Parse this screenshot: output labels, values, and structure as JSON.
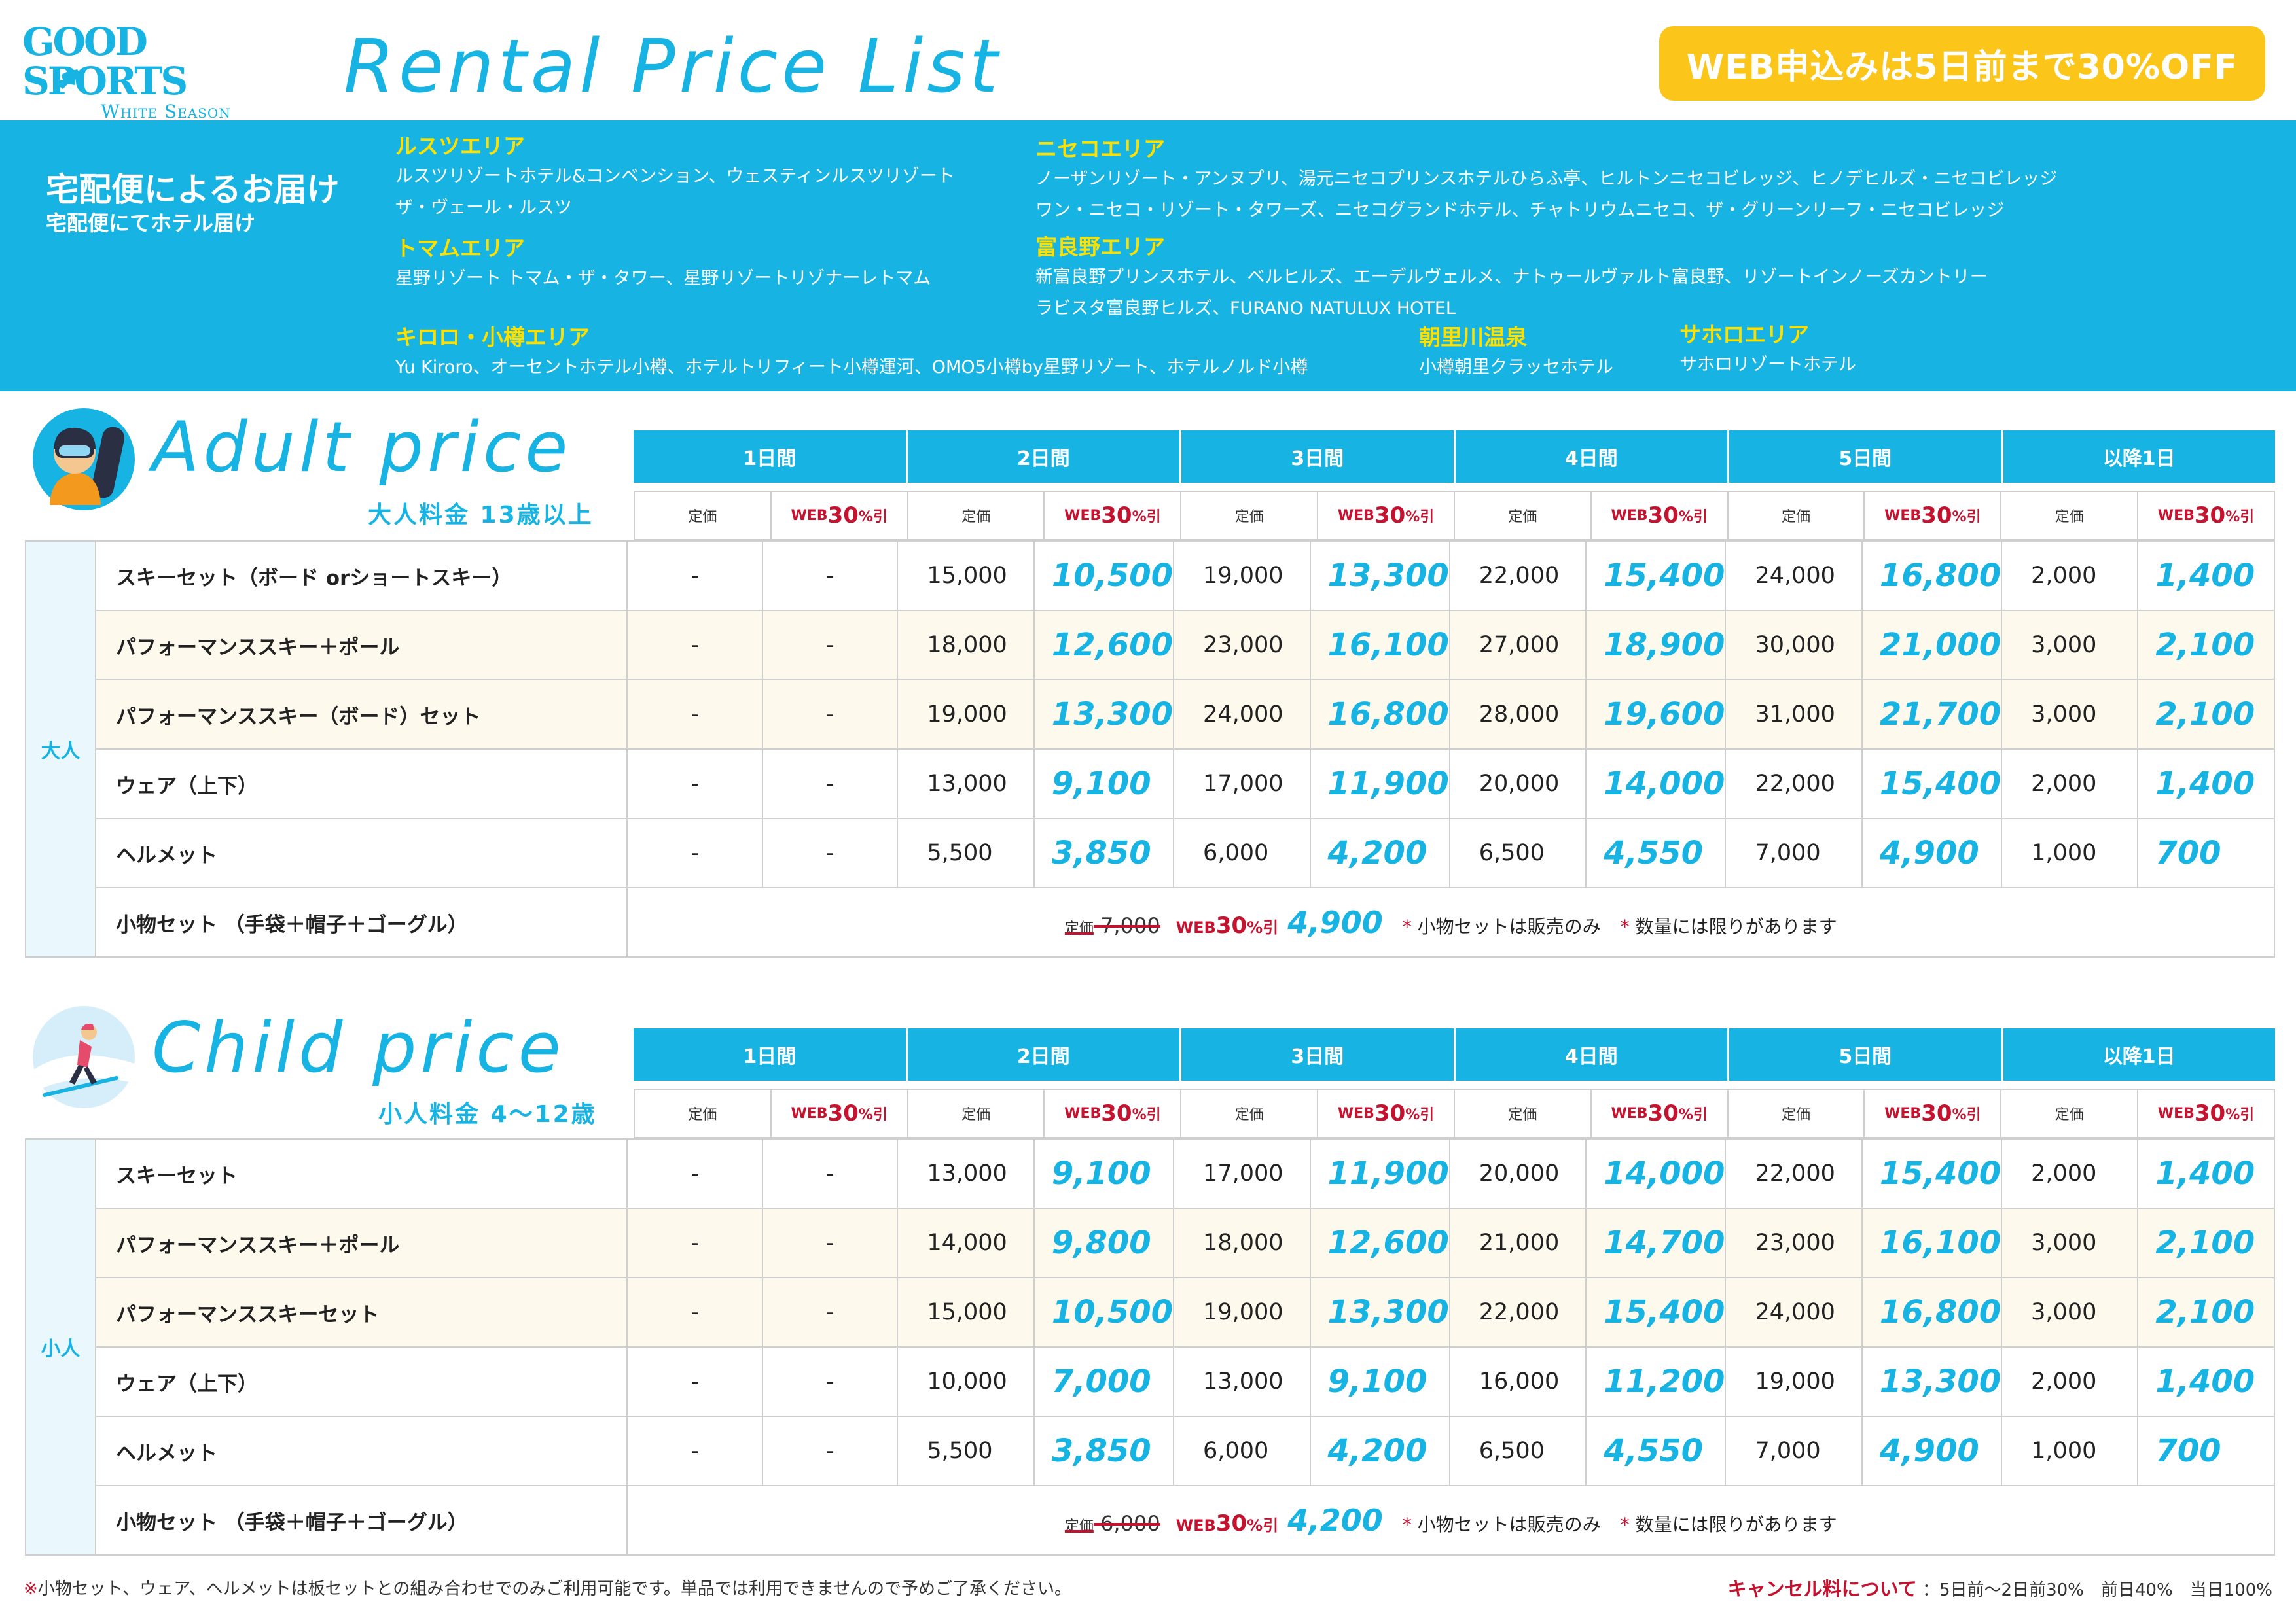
{
  "header": {
    "brand": "GOOD SPORTS",
    "season": "White Season",
    "title": "Rental Price List",
    "promo": "WEB申込みは5日前まで30%OFF",
    "brand_color": "#17b3e3",
    "promo_color": "#fbc51a"
  },
  "delivery": {
    "title": "宅配便によるお届け",
    "subtitle": "宅配便にてホテル届け",
    "areas": [
      {
        "name": "ルスツエリア",
        "lines": [
          "ルスツリゾートホテル&コンベンション、ウェスティンルスツリゾート",
          "ザ・ヴェール・ルスツ"
        ]
      },
      {
        "name": "トマムエリア",
        "lines": [
          "星野リゾート トマム・ザ・タワー、星野リゾートリゾナーレトマム"
        ]
      },
      {
        "name": "キロロ・小樽エリア",
        "lines": [
          "Yu Kiroro、オーセントホテル小樽、ホテルトリフィート小樽運河、OMO5小樽by星野リゾート、ホテルノルド小樽"
        ]
      },
      {
        "name": "ニセコエリア",
        "lines": [
          "ノーザンリゾート・アンヌプリ、湯元ニセコプリンスホテルひらふ亭、ヒルトンニセコビレッジ、ヒノデヒルズ・ニセコビレッジ",
          "ワン・ニセコ・リゾート・タワーズ、ニセコグランドホテル、チャトリウムニセコ、ザ・グリーンリーフ・ニセコビレッジ"
        ]
      },
      {
        "name": "富良野エリア",
        "lines": [
          "新富良野プリンスホテル、ベルヒルズ、エーデルヴェルメ、ナトゥールヴァルト富良野、リゾートインノーズカントリー",
          "ラビスタ富良野ヒルズ、FURANO NATULUX HOTEL"
        ]
      },
      {
        "name": "朝里川温泉",
        "lines": [
          "小樽朝里クラッセホテル"
        ]
      },
      {
        "name": "サホロエリア",
        "lines": [
          "サホロリゾートホテル"
        ]
      }
    ]
  },
  "columns": {
    "days": [
      "1日間",
      "2日間",
      "3日間",
      "4日間",
      "5日間",
      "以降1日"
    ],
    "std_label": "定価",
    "web_prefix": "WEB",
    "web_num": "30",
    "web_suffix": "%引"
  },
  "adult": {
    "title": "Adult price",
    "subtitle": "大人料金 13歳以上",
    "category": "大人",
    "rows": [
      {
        "item": "スキーセット（ボード orショートスキー）",
        "p1": "-",
        "w1": "-",
        "p2": "15,000",
        "w2": "10,500",
        "p3": "19,000",
        "w3": "13,300",
        "p4": "22,000",
        "w4": "15,400",
        "p5": "24,000",
        "w5": "16,800",
        "p6": "2,000",
        "w6": "1,400"
      },
      {
        "item": "パフォーマンススキー＋ポール",
        "p1": "-",
        "w1": "-",
        "p2": "18,000",
        "w2": "12,600",
        "p3": "23,000",
        "w3": "16,100",
        "p4": "27,000",
        "w4": "18,900",
        "p5": "30,000",
        "w5": "21,000",
        "p6": "3,000",
        "w6": "2,100"
      },
      {
        "item": "パフォーマンススキー（ボード）セット",
        "p1": "-",
        "w1": "-",
        "p2": "19,000",
        "w2": "13,300",
        "p3": "24,000",
        "w3": "16,800",
        "p4": "28,000",
        "w4": "19,600",
        "p5": "31,000",
        "w5": "21,700",
        "p6": "3,000",
        "w6": "2,100"
      },
      {
        "item": "ウェア（上下）",
        "p1": "-",
        "w1": "-",
        "p2": "13,000",
        "w2": "9,100",
        "p3": "17,000",
        "w3": "11,900",
        "p4": "20,000",
        "w4": "14,000",
        "p5": "22,000",
        "w5": "15,400",
        "p6": "2,000",
        "w6": "1,400"
      },
      {
        "item": "ヘルメット",
        "p1": "-",
        "w1": "-",
        "p2": "5,500",
        "w2": "3,850",
        "p3": "6,000",
        "w3": "4,200",
        "p4": "6,500",
        "w4": "4,550",
        "p5": "7,000",
        "w5": "4,900",
        "p6": "1,000",
        "w6": "700"
      }
    ],
    "accessory": {
      "item": "小物セット （手袋＋帽子＋ゴーグル）",
      "std_label": "定価",
      "std_price": "7,000",
      "web_price": "4,900",
      "note1": "小物セットは販売のみ",
      "note2": "数量には限りがあります"
    }
  },
  "child": {
    "title": "Child price",
    "subtitle": "小人料金 4〜12歳",
    "category": "小人",
    "rows": [
      {
        "item": "スキーセット",
        "p1": "-",
        "w1": "-",
        "p2": "13,000",
        "w2": "9,100",
        "p3": "17,000",
        "w3": "11,900",
        "p4": "20,000",
        "w4": "14,000",
        "p5": "22,000",
        "w5": "15,400",
        "p6": "2,000",
        "w6": "1,400"
      },
      {
        "item": "パフォーマンススキー＋ポール",
        "p1": "-",
        "w1": "-",
        "p2": "14,000",
        "w2": "9,800",
        "p3": "18,000",
        "w3": "12,600",
        "p4": "21,000",
        "w4": "14,700",
        "p5": "23,000",
        "w5": "16,100",
        "p6": "3,000",
        "w6": "2,100"
      },
      {
        "item": "パフォーマンススキーセット",
        "p1": "-",
        "w1": "-",
        "p2": "15,000",
        "w2": "10,500",
        "p3": "19,000",
        "w3": "13,300",
        "p4": "22,000",
        "w4": "15,400",
        "p5": "24,000",
        "w5": "16,800",
        "p6": "3,000",
        "w6": "2,100"
      },
      {
        "item": "ウェア（上下）",
        "p1": "-",
        "w1": "-",
        "p2": "10,000",
        "w2": "7,000",
        "p3": "13,000",
        "w3": "9,100",
        "p4": "16,000",
        "w4": "11,200",
        "p5": "19,000",
        "w5": "13,300",
        "p6": "2,000",
        "w6": "1,400"
      },
      {
        "item": "ヘルメット",
        "p1": "-",
        "w1": "-",
        "p2": "5,500",
        "w2": "3,850",
        "p3": "6,000",
        "w3": "4,200",
        "p4": "6,500",
        "w4": "4,550",
        "p5": "7,000",
        "w5": "4,900",
        "p6": "1,000",
        "w6": "700"
      }
    ],
    "accessory": {
      "item": "小物セット （手袋＋帽子＋ゴーグル）",
      "std_label": "定価",
      "std_price": "6,000",
      "web_price": "4,200",
      "note1": "小物セットは販売のみ",
      "note2": "数量には限りがあります"
    }
  },
  "footer": {
    "note": "小物セット、ウェア、ヘルメットは板セットとの組み合わせでのみご利用可能です。単品では利用できませんので予めご了承ください。",
    "cancel_label": "キャンセル料について",
    "cancel_text": "：5日前〜2日前30%　前日40%　当日100%"
  }
}
